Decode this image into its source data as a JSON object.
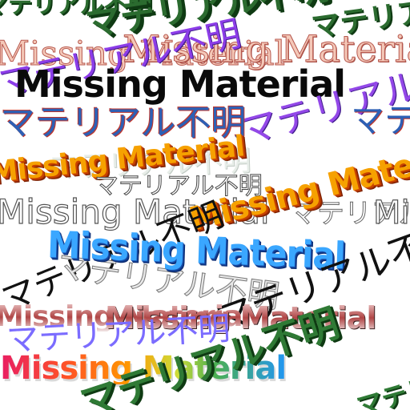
{
  "texture": {
    "label_jp": "マテリアル不明",
    "label_en": "Missing Material"
  }
}
